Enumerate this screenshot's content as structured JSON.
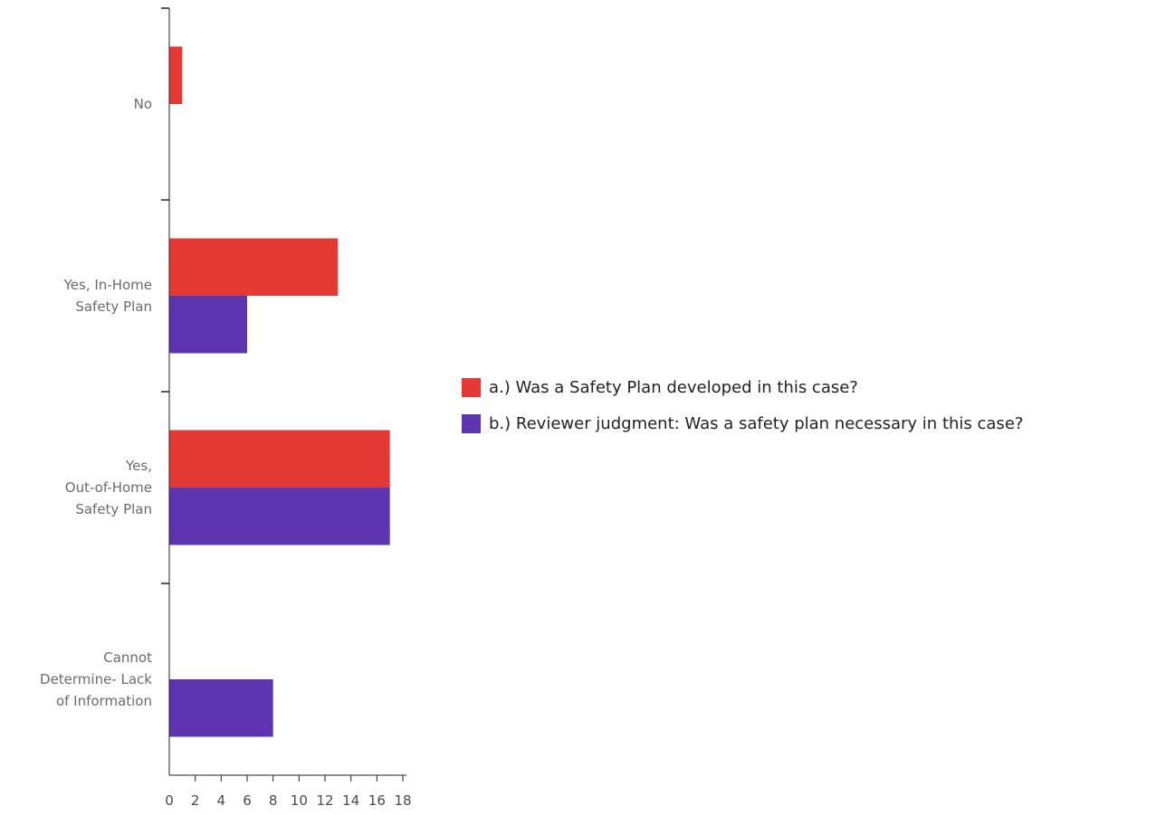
{
  "chart_data": {
    "type": "bar",
    "orientation": "horizontal",
    "categories": [
      [
        "No"
      ],
      [
        "Yes, In-Home",
        "Safety Plan"
      ],
      [
        "Yes,",
        "Out-of-Home",
        "Safety Plan"
      ],
      [
        "Cannot",
        "Determine- Lack",
        "of Information"
      ]
    ],
    "series": [
      {
        "name": "a.) Was a Safety Plan developed in this case?",
        "color": "#e53935",
        "values": [
          1,
          13,
          17,
          0
        ]
      },
      {
        "name": "b.) Reviewer judgment: Was a safety plan necessary in this case?",
        "color": "#5e35b1",
        "values": [
          0,
          6,
          17,
          8
        ]
      }
    ],
    "xlim": [
      0,
      18
    ],
    "xticks": [
      0,
      2,
      4,
      6,
      8,
      10,
      12,
      14,
      16,
      18
    ],
    "title": "",
    "xlabel": "",
    "ylabel": "",
    "grid": false,
    "legend_position": "right"
  }
}
